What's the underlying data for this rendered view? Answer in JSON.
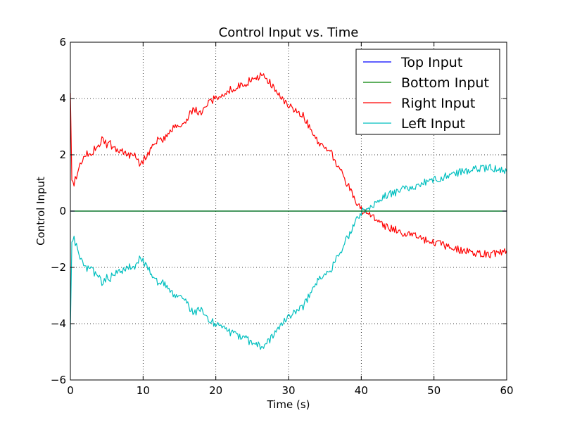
{
  "chart_data": {
    "type": "line",
    "title": "Control Input vs. Time",
    "xlabel": "Time (s)",
    "ylabel": "Control Input",
    "xlim": [
      0,
      60
    ],
    "ylim": [
      -6,
      6
    ],
    "xticks": [
      0,
      10,
      20,
      30,
      40,
      50,
      60
    ],
    "yticks": [
      -6,
      -4,
      -2,
      0,
      2,
      4,
      6
    ],
    "xtick_labels": [
      "0",
      "10",
      "20",
      "30",
      "40",
      "50",
      "60"
    ],
    "ytick_labels": [
      "−6",
      "−4",
      "−2",
      "0",
      "2",
      "4",
      "6"
    ],
    "grid": true,
    "legend_position": "top-right",
    "series": [
      {
        "name": "Top Input",
        "color": "#0000ff",
        "x": [
          0,
          60
        ],
        "y": [
          0,
          0
        ]
      },
      {
        "name": "Bottom Input",
        "color": "#008000",
        "x": [
          0,
          60
        ],
        "y": [
          0,
          0
        ]
      },
      {
        "name": "Right Input",
        "color": "#ff0000",
        "x": [
          0,
          0.2,
          0.5,
          1,
          1.5,
          2,
          3,
          4,
          4.5,
          5,
          5.5,
          6,
          7,
          8,
          9,
          9.5,
          10,
          10.5,
          11,
          12,
          13,
          14,
          15,
          16,
          17,
          18,
          19,
          20,
          21,
          22,
          23,
          24,
          25,
          26,
          27,
          28,
          29,
          30,
          31,
          32,
          33,
          34,
          35,
          36,
          37,
          38,
          39,
          40,
          41,
          42,
          43,
          44,
          45,
          46,
          47,
          48,
          49,
          50,
          51,
          52,
          53,
          54,
          55,
          56,
          57,
          58,
          59,
          60
        ],
        "y": [
          4.2,
          1.1,
          1.0,
          1.3,
          1.8,
          2.0,
          2.1,
          2.4,
          2.6,
          2.3,
          2.4,
          2.2,
          2.1,
          2.0,
          2.0,
          1.7,
          1.8,
          1.9,
          2.2,
          2.5,
          2.6,
          2.9,
          3.0,
          3.3,
          3.6,
          3.5,
          3.9,
          4.0,
          4.2,
          4.3,
          4.4,
          4.5,
          4.7,
          4.8,
          4.7,
          4.4,
          4.0,
          3.7,
          3.6,
          3.4,
          2.9,
          2.5,
          2.3,
          2.0,
          1.5,
          1.0,
          0.5,
          0.05,
          -0.15,
          -0.3,
          -0.5,
          -0.6,
          -0.7,
          -0.8,
          -0.85,
          -0.95,
          -1.05,
          -1.1,
          -1.2,
          -1.3,
          -1.35,
          -1.4,
          -1.45,
          -1.5,
          -1.5,
          -1.55,
          -1.45,
          -1.4
        ]
      },
      {
        "name": "Left Input",
        "color": "#00bfbf",
        "x": [
          0,
          0.2,
          0.5,
          1,
          1.5,
          2,
          3,
          4,
          4.5,
          5,
          5.5,
          6,
          7,
          8,
          9,
          9.5,
          10,
          10.5,
          11,
          12,
          13,
          14,
          15,
          16,
          17,
          18,
          19,
          20,
          21,
          22,
          23,
          24,
          25,
          26,
          27,
          28,
          29,
          30,
          31,
          32,
          33,
          34,
          35,
          36,
          37,
          38,
          39,
          40,
          41,
          42,
          43,
          44,
          45,
          46,
          47,
          48,
          49,
          50,
          51,
          52,
          53,
          54,
          55,
          56,
          57,
          58,
          59,
          60
        ],
        "y": [
          -4.2,
          -1.1,
          -1.0,
          -1.3,
          -1.8,
          -2.0,
          -2.1,
          -2.4,
          -2.6,
          -2.3,
          -2.4,
          -2.2,
          -2.1,
          -2.0,
          -2.0,
          -1.7,
          -1.8,
          -1.9,
          -2.2,
          -2.5,
          -2.6,
          -2.9,
          -3.0,
          -3.3,
          -3.6,
          -3.5,
          -3.9,
          -4.0,
          -4.2,
          -4.3,
          -4.4,
          -4.5,
          -4.7,
          -4.8,
          -4.7,
          -4.4,
          -4.0,
          -3.7,
          -3.6,
          -3.4,
          -2.9,
          -2.5,
          -2.3,
          -2.0,
          -1.5,
          -1.0,
          -0.5,
          -0.05,
          0.15,
          0.3,
          0.5,
          0.6,
          0.7,
          0.8,
          0.85,
          0.95,
          1.05,
          1.1,
          1.2,
          1.3,
          1.35,
          1.4,
          1.45,
          1.5,
          1.5,
          1.55,
          1.45,
          1.4
        ]
      }
    ]
  }
}
